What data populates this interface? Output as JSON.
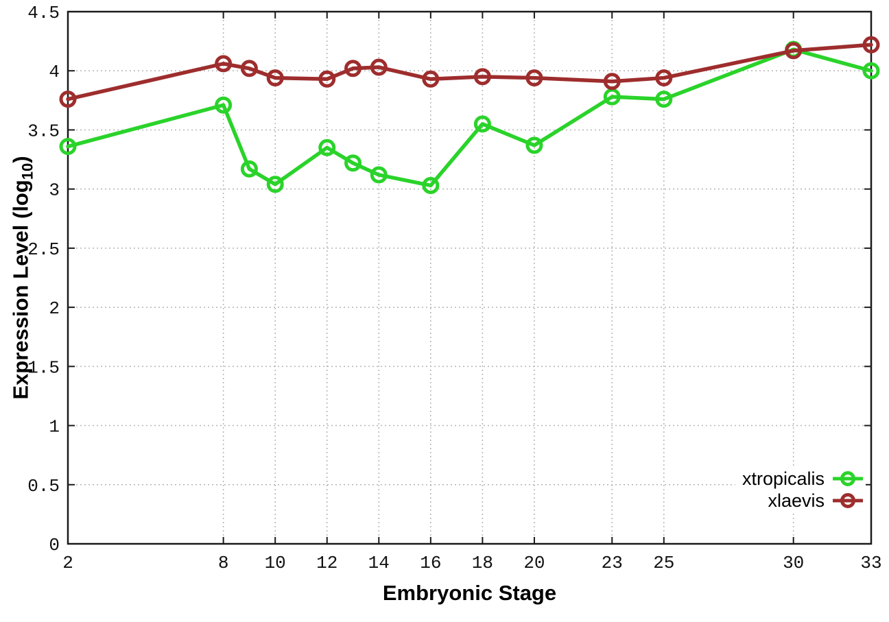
{
  "chart_data": {
    "type": "line",
    "x": [
      2,
      8,
      9,
      10,
      12,
      13,
      14,
      16,
      18,
      20,
      23,
      25,
      30,
      33
    ],
    "series": [
      {
        "name": "xtropicalis",
        "color": "#2ad32a",
        "values": [
          3.36,
          3.71,
          3.17,
          3.04,
          3.35,
          3.22,
          3.12,
          3.03,
          3.55,
          3.37,
          3.78,
          3.76,
          4.18,
          4.0
        ]
      },
      {
        "name": "xlaevis",
        "color": "#9e2d2d",
        "values": [
          3.76,
          4.06,
          4.02,
          3.94,
          3.93,
          4.02,
          4.03,
          3.93,
          3.95,
          3.94,
          3.91,
          3.94,
          4.17,
          4.22
        ]
      }
    ],
    "title": "",
    "xlabel": "Embryonic Stage",
    "ylabel": "Expression Level (log10)",
    "ylabel_main": "Expression Level (log",
    "ylabel_sub": "10",
    "ylabel_end": ")",
    "xlim": [
      2,
      33
    ],
    "ylim": [
      0,
      4.5
    ],
    "xticks": [
      2,
      8,
      10,
      12,
      14,
      16,
      18,
      20,
      23,
      25,
      30,
      33
    ],
    "yticks": [
      0,
      0.5,
      1,
      1.5,
      2,
      2.5,
      3,
      3.5,
      4,
      4.5
    ],
    "grid": true,
    "grid_style": "dotted",
    "marker": "open-circle",
    "legend_position": "bottom-right",
    "axis_color": "#1a1a1a",
    "grid_color": "#b4b4b4"
  }
}
